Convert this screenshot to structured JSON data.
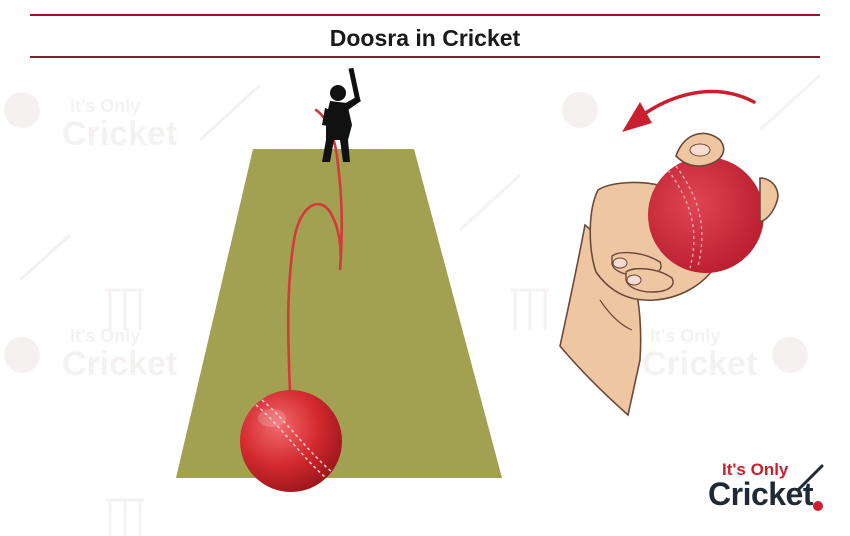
{
  "title": "Doosra in Cricket",
  "logo": {
    "line1": "It's Only",
    "line2": "Cricket",
    "watermark_line1": "It's Only",
    "watermark_line2": "Cricket"
  },
  "colors": {
    "title_rule": "#8b1a2b",
    "pitch": "#a2a051",
    "ball_red": "#d42a2f",
    "trajectory": "#d43a3a",
    "arrow": "#c8202f",
    "skin": "#efc6a2",
    "logo_red": "#c8202f",
    "logo_dark": "#1f2a36"
  },
  "icons": [
    "batsman-silhouette-icon",
    "cricket-ball-icon",
    "curved-arrow-icon",
    "bowler-hand-icon"
  ]
}
